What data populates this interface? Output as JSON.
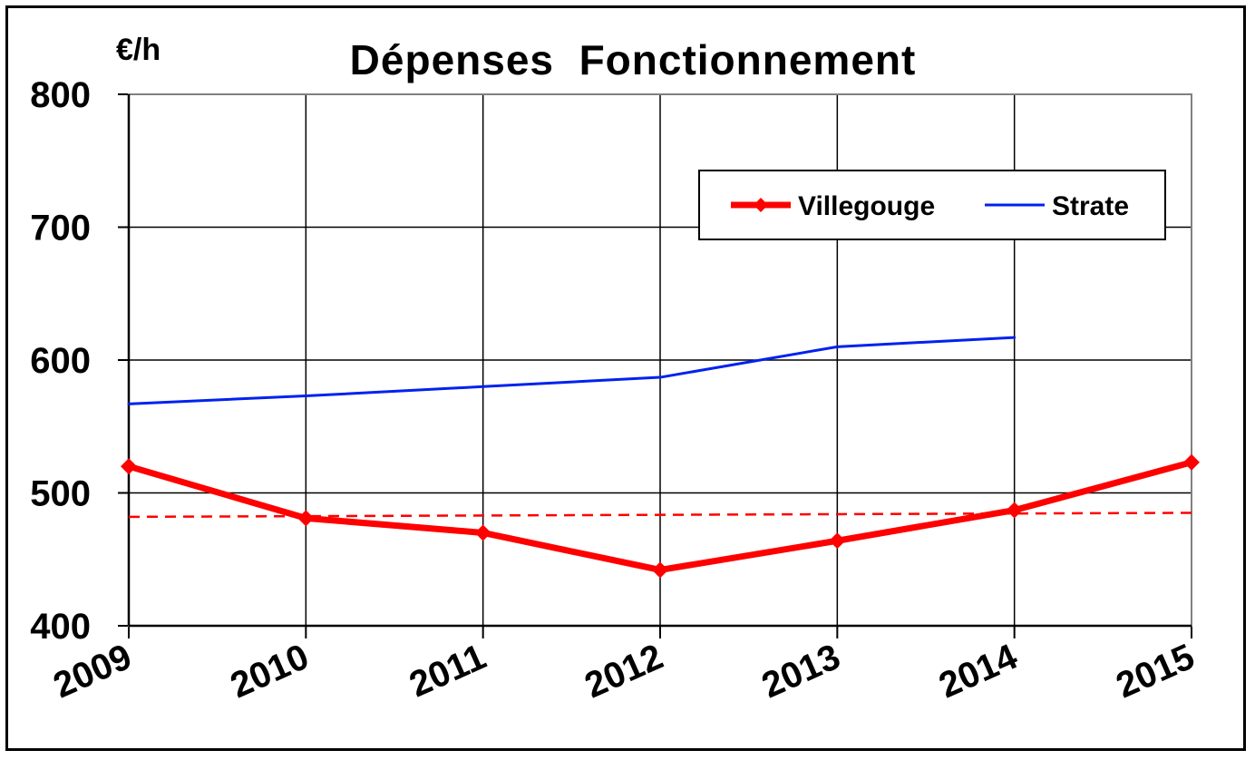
{
  "chart_data": {
    "type": "line",
    "title": "Dépenses  Fonctionnement",
    "ylabel": "€/h",
    "xlabel": "",
    "categories": [
      "2009",
      "2010",
      "2011",
      "2012",
      "2013",
      "2014",
      "2015"
    ],
    "ylim": [
      400,
      800
    ],
    "yticks": [
      "400",
      "500",
      "600",
      "700",
      "800"
    ],
    "grid": true,
    "legend_position": "top-right",
    "series": [
      {
        "name": "Villegouge",
        "values": [
          520,
          481,
          470,
          442,
          464,
          487,
          523
        ],
        "color": "#ff0000",
        "marker": "diamond"
      },
      {
        "name": "Strate",
        "values": [
          567,
          573,
          580,
          587,
          610,
          617,
          null
        ],
        "color": "#0022ee",
        "marker": "none"
      }
    ],
    "trendline": {
      "of": "Villegouge",
      "style": "dashed",
      "color": "#ff0000",
      "start": 482,
      "end": 485
    }
  }
}
